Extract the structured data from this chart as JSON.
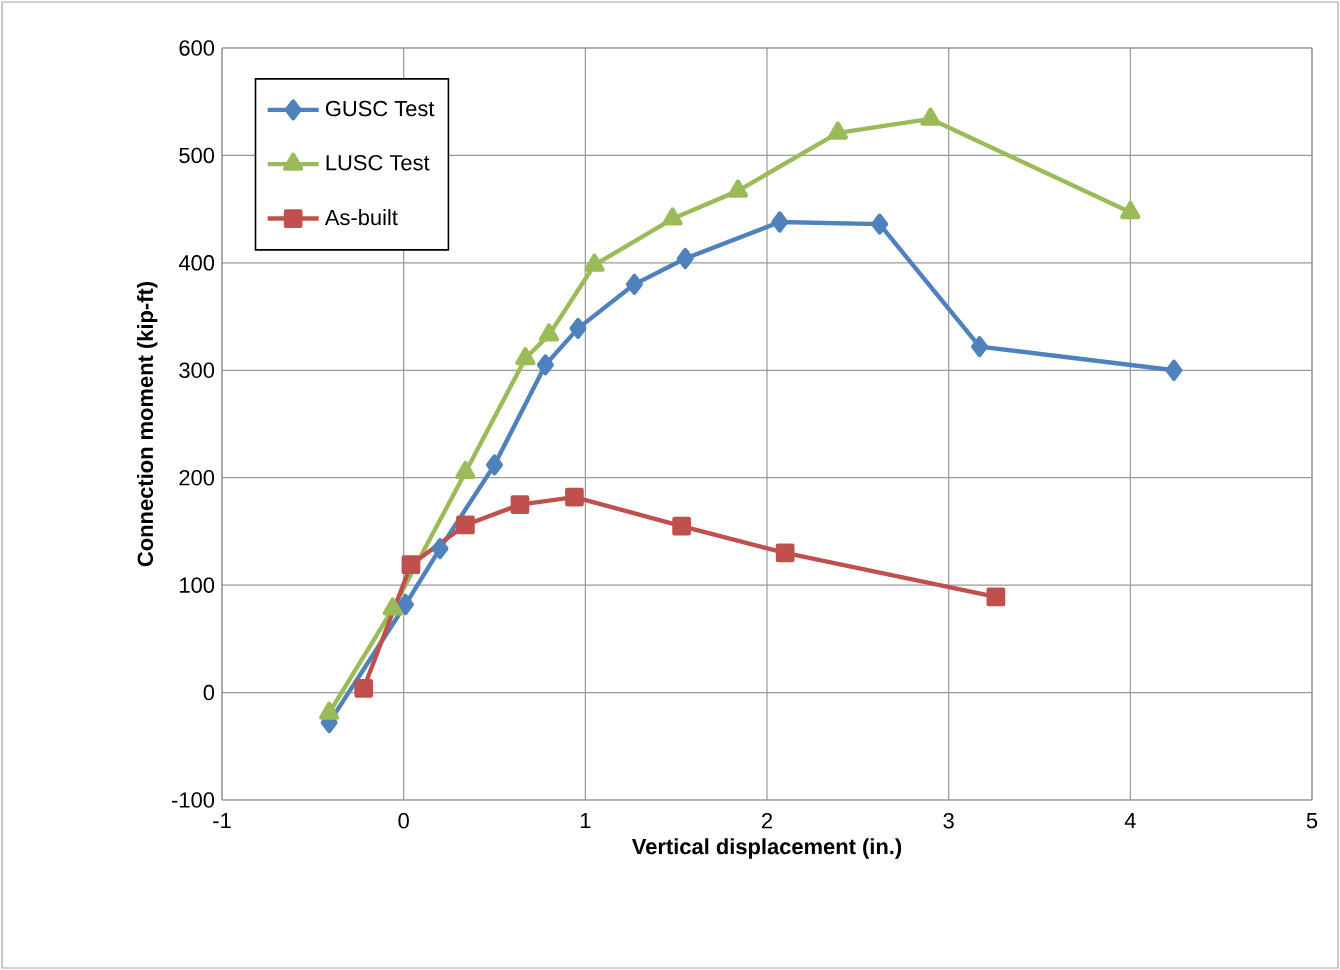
{
  "chart_data": {
    "type": "line",
    "xlabel": "Vertical displacement (in.)",
    "ylabel": "Connection moment (kip-ft)",
    "xlim": [
      -1,
      5
    ],
    "xticks": [
      -1,
      0,
      1,
      2,
      3,
      4,
      5
    ],
    "ylim": [
      -100,
      600
    ],
    "yticks": [
      -100,
      0,
      100,
      200,
      300,
      400,
      500,
      600
    ],
    "grid": true,
    "legend": "top left",
    "series": [
      {
        "name": "GUSC Test",
        "color": "#4f81bd",
        "marker": "diamond",
        "x": [
          -0.41,
          0.01,
          0.2,
          0.5,
          0.78,
          0.96,
          1.27,
          1.55,
          2.07,
          2.62,
          3.17,
          4.24
        ],
        "values": [
          -28,
          82,
          134,
          212,
          305,
          339,
          380,
          404,
          438,
          436,
          322,
          300
        ]
      },
      {
        "name": "LUSC Test",
        "color": "#9bbb59",
        "marker": "triangle",
        "x": [
          -0.41,
          -0.06,
          0.34,
          0.67,
          0.8,
          1.05,
          1.48,
          1.84,
          2.39,
          2.9,
          4.0
        ],
        "values": [
          -19,
          78,
          205,
          311,
          333,
          398,
          441,
          467,
          521,
          534,
          447
        ]
      },
      {
        "name": "As-built",
        "color": "#c0504d",
        "marker": "square",
        "x": [
          -0.22,
          0.04,
          0.34,
          0.64,
          0.94,
          1.53,
          2.1,
          3.26
        ],
        "values": [
          4,
          119,
          156,
          175,
          182,
          155,
          130,
          89
        ]
      }
    ]
  }
}
